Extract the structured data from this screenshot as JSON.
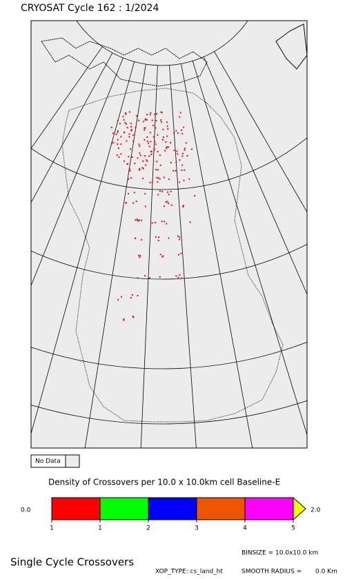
{
  "header": {
    "title": "CRYOSAT Cycle 162 : 1/2024"
  },
  "no_data": {
    "label": "No Data"
  },
  "colorbar": {
    "title": "Density of Crossovers per  10.0 x  10.0km cell Baseline-E",
    "min_label": "0.0",
    "max_label": "2.0",
    "colors": [
      "#ff0000",
      "#00ff00",
      "#0000ff",
      "#ee5500",
      "#ff00ff"
    ],
    "arrow_color": "#ffff00",
    "tick_labels": [
      "1",
      "1",
      "2",
      "3",
      "4",
      "5"
    ]
  },
  "footer": {
    "title": "Single Cycle Crossovers",
    "binsize": "BINSIZE = 10.0x10.0 km",
    "xop_type": "XOP_TYPE: cs_land_ht",
    "smooth_radius": "SMOOTH RADIUS =",
    "smooth_value": "0.0 Km"
  }
}
